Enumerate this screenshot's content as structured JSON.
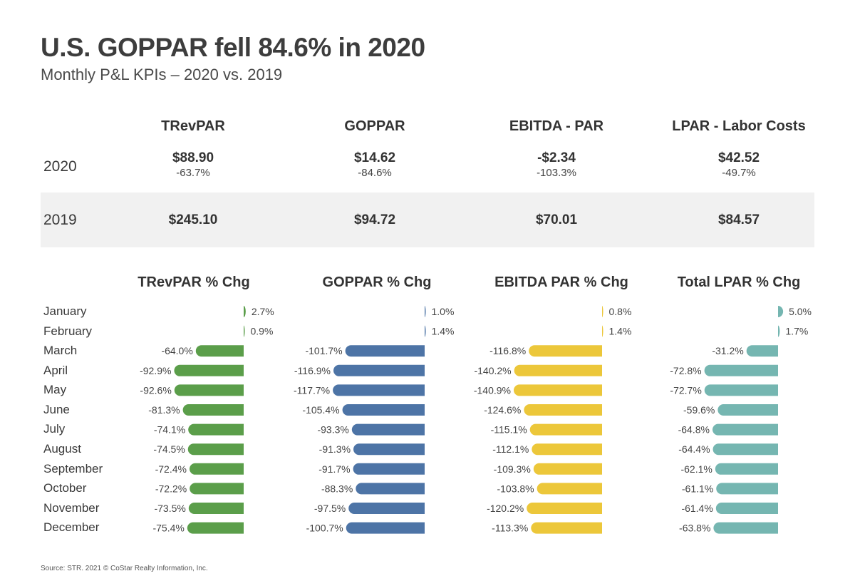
{
  "header": {
    "title": "U.S. GOPPAR fell 84.6% in 2020",
    "subtitle": "Monthly P&L KPIs – 2020 vs. 2019"
  },
  "kpi_table": {
    "columns": [
      "TRevPAR",
      "GOPPAR",
      "EBITDA - PAR",
      "LPAR - Labor Costs"
    ],
    "rows": [
      {
        "label": "2020",
        "values": [
          "$88.90",
          "$14.62",
          "-$2.34",
          "$42.52"
        ],
        "changes": [
          "-63.7%",
          "-84.6%",
          "-103.3%",
          "-49.7%"
        ]
      },
      {
        "label": "2019",
        "values": [
          "$245.10",
          "$94.72",
          "$70.01",
          "$84.57"
        ]
      }
    ]
  },
  "chart_data": {
    "type": "bar",
    "orientation": "horizontal",
    "categories": [
      "January",
      "February",
      "March",
      "April",
      "May",
      "June",
      "July",
      "August",
      "September",
      "October",
      "November",
      "December"
    ],
    "series": [
      {
        "name": "TRevPAR % Chg",
        "color": "#5b9e4a",
        "values": [
          2.7,
          0.9,
          -64.0,
          -92.9,
          -92.6,
          -81.3,
          -74.1,
          -74.5,
          -72.4,
          -72.2,
          -73.5,
          -75.4
        ],
        "labels": [
          "2.7%",
          "0.9%",
          "-64.0%",
          "-92.9%",
          "-92.6%",
          "-81.3%",
          "-74.1%",
          "-74.5%",
          "-72.4%",
          "-72.2%",
          "-73.5%",
          "-75.4%"
        ]
      },
      {
        "name": "GOPPAR % Chg",
        "color": "#4d74a6",
        "values": [
          1.0,
          1.4,
          -101.7,
          -116.9,
          -117.7,
          -105.4,
          -93.3,
          -91.3,
          -91.7,
          -88.3,
          -97.5,
          -100.7
        ],
        "labels": [
          "1.0%",
          "1.4%",
          "-101.7%",
          "-116.9%",
          "-117.7%",
          "-105.4%",
          "-93.3%",
          "-91.3%",
          "-91.7%",
          "-88.3%",
          "-97.5%",
          "-100.7%"
        ]
      },
      {
        "name": "EBITDA PAR % Chg",
        "color": "#ecc73a",
        "values": [
          0.8,
          1.4,
          -116.8,
          -140.2,
          -140.9,
          -124.6,
          -115.1,
          -112.1,
          -109.3,
          -103.8,
          -120.2,
          -113.3
        ],
        "labels": [
          "0.8%",
          "1.4%",
          "-116.8%",
          "-140.2%",
          "-140.9%",
          "-124.6%",
          "-115.1%",
          "-112.1%",
          "-109.3%",
          "-103.8%",
          "-120.2%",
          "-113.3%"
        ]
      },
      {
        "name": "Total LPAR % Chg",
        "color": "#75b6b1",
        "values": [
          5.0,
          1.7,
          -31.2,
          -72.8,
          -72.7,
          -59.6,
          -64.8,
          -64.4,
          -62.1,
          -61.1,
          -61.4,
          -63.8
        ],
        "labels": [
          "5.0%",
          "1.7%",
          "-31.2%",
          "-72.8%",
          "-72.7%",
          "-59.6%",
          "-64.8%",
          "-64.4%",
          "-62.1%",
          "-61.1%",
          "-61.4%",
          "-63.8%"
        ]
      }
    ]
  },
  "footer": {
    "source": "Source: STR. 2021 © CoStar Realty Information, Inc."
  }
}
